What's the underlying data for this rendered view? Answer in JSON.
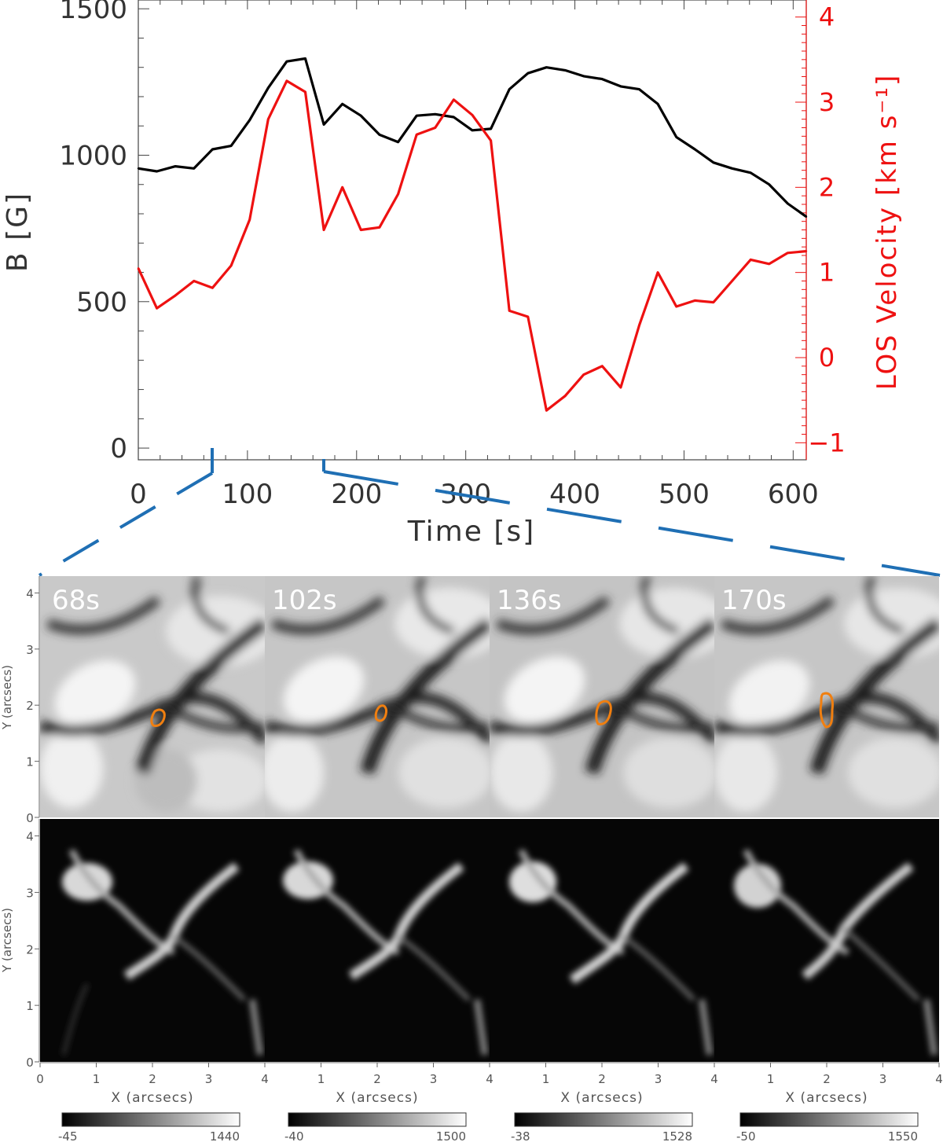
{
  "chart_data": [
    {
      "type": "line",
      "xlabel": "Time [s]",
      "ylabel_left": "B [G]",
      "ylabel_right": "LOS Velocity [km s⁻¹]",
      "xlim": [
        0,
        612
      ],
      "ylim_left": [
        -40,
        1530
      ],
      "ylim_right": [
        -1.2,
        4.2
      ],
      "x_ticks": [
        "0",
        "100",
        "200",
        "300",
        "400",
        "500",
        "600"
      ],
      "y_left_ticks": [
        "0",
        "500",
        "1000",
        "1500"
      ],
      "y_right_ticks": [
        "−1",
        "0",
        "1",
        "2",
        "3",
        "4"
      ],
      "colors": {
        "B": "#000000",
        "velocity": "#ee1111",
        "highlight": "#1f6fb4"
      },
      "highlight_range": [
        68,
        170
      ],
      "x": [
        0,
        17,
        34,
        51,
        68,
        85,
        102,
        119,
        136,
        153,
        170,
        187,
        204,
        221,
        238,
        255,
        272,
        289,
        306,
        323,
        340,
        357,
        374,
        391,
        408,
        425,
        442,
        459,
        476,
        493,
        510,
        527,
        544,
        561,
        578,
        595,
        612
      ],
      "series": [
        {
          "key": "B",
          "axis": "left",
          "values": [
            955,
            945,
            962,
            955,
            1020,
            1032,
            1120,
            1230,
            1320,
            1330,
            1105,
            1175,
            1135,
            1070,
            1045,
            1135,
            1140,
            1130,
            1085,
            1090,
            1225,
            1280,
            1300,
            1290,
            1270,
            1260,
            1235,
            1225,
            1175,
            1062,
            1020,
            975,
            955,
            940,
            900,
            835,
            790
          ]
        },
        {
          "key": "velocity",
          "axis": "right",
          "values": [
            1.05,
            0.58,
            0.73,
            0.9,
            0.82,
            1.08,
            1.62,
            2.8,
            3.25,
            3.12,
            1.5,
            2.0,
            1.5,
            1.53,
            1.92,
            2.62,
            2.7,
            3.03,
            2.85,
            2.55,
            0.55,
            0.48,
            -0.62,
            -0.45,
            -0.2,
            -0.1,
            -0.35,
            0.38,
            1.0,
            0.6,
            0.67,
            0.65,
            0.9,
            1.15,
            1.1,
            1.23,
            1.25
          ]
        }
      ]
    },
    {
      "type": "heatmap",
      "xlabel": "X (arcsecs)",
      "ylabel": "Y (arcsecs)",
      "axis_ticks": [
        "0",
        "1",
        "2",
        "3",
        "4"
      ],
      "x_ticks_all": [
        "0",
        "1",
        "2",
        "3",
        "4",
        "1",
        "2",
        "3",
        "4",
        "1",
        "2",
        "3",
        "4",
        "1",
        "2",
        "3",
        "4"
      ],
      "panels": [
        {
          "label": "68s",
          "colorbar_min": "-45",
          "colorbar_max": "1440"
        },
        {
          "label": "102s",
          "colorbar_min": "-40",
          "colorbar_max": "1500"
        },
        {
          "label": "136s",
          "colorbar_min": "-38",
          "colorbar_max": "1528"
        },
        {
          "label": "170s",
          "colorbar_min": "-50",
          "colorbar_max": "1550"
        }
      ]
    }
  ]
}
